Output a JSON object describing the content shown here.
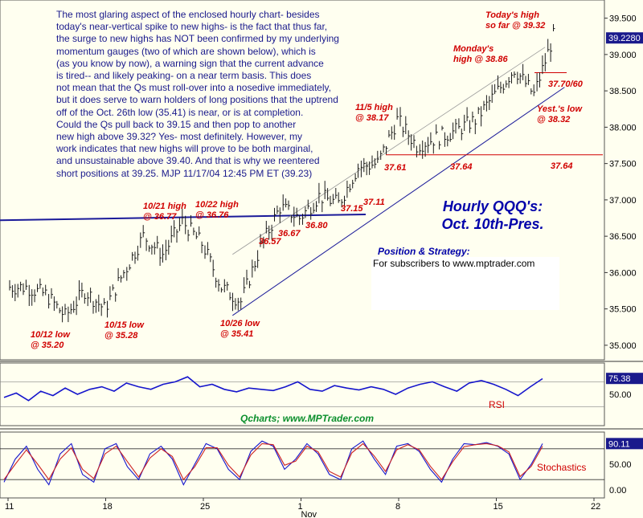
{
  "commentary": "The most glaring aspect of the enclosed hourly chart- besides\ntoday's near-vertical spike to new highs- is the fact that thus far,\nthe surge to new highs has NOT been confirmed by my underlying\nmomentum gauges (two of which are shown below), which is\n(as you know by now), a warning sign that the current advance\nis tired-- and likely peaking- on a near term basis. This does\nnot mean that the Qs must roll-over into a nosedive immediately,\nbut it does serve to warn holders of long positions that the uptrend\noff of the Oct. 26th low (35.41) is near, or is at completion.\nCould the Qs pull back to 39.15 and then pop to another\nnew high above 39.32? Yes- most definitely. However, my\nwork indicates that new highs will prove to be both marginal,\nand unsustainable above 39.40. And that is why we reentered\nshort positions at 39.25.  MJP  11/17/04 12:45 PM ET (39.23)",
  "title_line1": "Hourly QQQ's:",
  "title_line2": "Oct. 10th-Pres.",
  "position_title": "Position & Strategy:",
  "position_text": "For subscribers to www.mptrader.com",
  "credit": "Qcharts; www.MPTrader.com",
  "colors": {
    "background": "#fffff0",
    "price": "#1a1a1a",
    "annotation": "#d00000",
    "trendline": "#1a1a99",
    "rsi": "#1515cc",
    "stoch_k": "#1515cc",
    "stoch_d": "#cc2222",
    "tag_bg": "#1a1a8c",
    "green": "#0b8f2c"
  },
  "chart_data": [
    {
      "type": "line",
      "title": "Hourly QQQ's: Oct. 10th-Pres.",
      "x_tick_labels": [
        "11",
        "18",
        "25",
        "1",
        "8",
        "15",
        "22"
      ],
      "x_sublabel": "Nov",
      "y_tick_labels": [
        "35.000",
        "35.500",
        "36.000",
        "36.500",
        "37.000",
        "37.500",
        "38.000",
        "38.500",
        "39.000",
        "39.500"
      ],
      "ylim": [
        34.8,
        39.75
      ],
      "last_price": "39.2280",
      "series": [
        {
          "type": "hourly price bars",
          "x": [
            "10/11",
            "10/12",
            "10/13",
            "10/14",
            "10/15",
            "10/18",
            "10/19",
            "10/20",
            "10/21",
            "10/22",
            "10/25",
            "10/26",
            "10/27",
            "10/28",
            "10/29",
            "11/1",
            "11/2",
            "11/3",
            "11/4",
            "11/5",
            "11/8",
            "11/9",
            "11/10",
            "11/11",
            "11/12",
            "11/15",
            "11/16",
            "11/17"
          ],
          "values": [
            35.8,
            35.7,
            35.4,
            35.75,
            35.5,
            36.0,
            36.5,
            36.25,
            36.7,
            36.4,
            35.8,
            35.6,
            36.35,
            36.9,
            36.75,
            37.05,
            36.95,
            37.45,
            37.5,
            38.1,
            37.75,
            37.85,
            37.95,
            38.1,
            38.45,
            38.8,
            38.45,
            39.25
          ]
        }
      ],
      "support_lines": [
        {
          "name": "resistance",
          "from": [
            "10/11",
            36.72
          ],
          "to": [
            "11/5",
            36.8
          ]
        },
        {
          "name": "uptrend",
          "from": [
            "10/26",
            35.41
          ],
          "to": [
            "11/18",
            38.55
          ]
        },
        {
          "name": "channel",
          "from": [
            "10/26",
            36.25
          ],
          "to": [
            "11/17",
            39.1
          ]
        },
        {
          "name": "support",
          "from": [
            "11/5",
            37.62
          ],
          "to": [
            "11/18",
            37.62
          ]
        },
        {
          "name": "target",
          "from": [
            "11/17",
            38.75
          ],
          "to": [
            "11/18",
            38.75
          ]
        }
      ],
      "annotations": [
        {
          "text": "10/12 low\n@ 35.20",
          "x": "10/12",
          "y": 35.2
        },
        {
          "text": "10/15 low\n@ 35.28",
          "x": "10/15",
          "y": 35.28
        },
        {
          "text": "10/21 high\n@ 36.77",
          "x": "10/21",
          "y": 36.77
        },
        {
          "text": "10/22 high\n@ 36.76",
          "x": "10/22",
          "y": 36.76
        },
        {
          "text": "10/26 low\n@ 35.41",
          "x": "10/26",
          "y": 35.41
        },
        {
          "text": "36.57",
          "x": "10/28",
          "y": 36.57
        },
        {
          "text": "36.67",
          "x": "11/1",
          "y": 36.67
        },
        {
          "text": "36.80",
          "x": "11/2",
          "y": 36.8
        },
        {
          "text": "37.15",
          "x": "11/3",
          "y": 37.15
        },
        {
          "text": "37.11",
          "x": "11/4",
          "y": 37.11
        },
        {
          "text": "11/5 high\n@ 38.17",
          "x": "11/5",
          "y": 38.17
        },
        {
          "text": "37.61",
          "x": "11/5",
          "y": 37.61
        },
        {
          "text": "37.64",
          "x": "11/10",
          "y": 37.64
        },
        {
          "text": "37.64",
          "x": "11/18",
          "y": 37.64
        },
        {
          "text": "Monday's\nhigh @ 38.86",
          "x": "11/15",
          "y": 38.86
        },
        {
          "text": "Today's high\nso far @ 39.32",
          "x": "11/17",
          "y": 39.32
        },
        {
          "text": "37.70/60",
          "x": "11/18",
          "y": 38.75
        },
        {
          "text": "Yest.'s low\n@ 38.32",
          "x": "11/16",
          "y": 38.32
        }
      ]
    },
    {
      "type": "line",
      "name": "RSI",
      "last_value": "75.38",
      "y_tick_labels": [
        "50.00"
      ],
      "reference_levels": [
        70,
        30
      ],
      "series": [
        {
          "name": "RSI",
          "values": [
            45,
            52,
            40,
            55,
            48,
            60,
            50,
            58,
            62,
            55,
            68,
            62,
            58,
            66,
            70,
            78,
            62,
            66,
            58,
            54,
            60,
            58,
            56,
            62,
            70,
            58,
            55,
            64,
            60,
            57,
            62,
            58,
            50,
            60,
            66,
            70,
            62,
            55,
            68,
            72,
            66,
            58,
            48,
            62,
            75
          ]
        }
      ]
    },
    {
      "type": "line",
      "name": "Stochastics",
      "last_value": "90.11",
      "y_tick_labels": [
        "50.00",
        "0.00"
      ],
      "reference_levels": [
        80,
        20
      ],
      "series": [
        {
          "name": "%K",
          "values": [
            15,
            60,
            85,
            40,
            10,
            70,
            90,
            30,
            15,
            80,
            90,
            45,
            20,
            70,
            85,
            60,
            10,
            50,
            90,
            80,
            40,
            20,
            75,
            95,
            85,
            40,
            60,
            90,
            70,
            30,
            20,
            80,
            95,
            60,
            30,
            85,
            90,
            75,
            40,
            15,
            60,
            90,
            88,
            92,
            85,
            70,
            20,
            50,
            90
          ]
        },
        {
          "name": "%D",
          "values": [
            20,
            50,
            78,
            50,
            20,
            60,
            82,
            40,
            22,
            70,
            85,
            55,
            25,
            62,
            80,
            65,
            20,
            45,
            82,
            82,
            48,
            25,
            68,
            90,
            88,
            48,
            56,
            85,
            74,
            36,
            25,
            72,
            90,
            66,
            36,
            78,
            88,
            78,
            46,
            20,
            55,
            84,
            88,
            90,
            86,
            74,
            26,
            46,
            85
          ]
        }
      ]
    }
  ]
}
